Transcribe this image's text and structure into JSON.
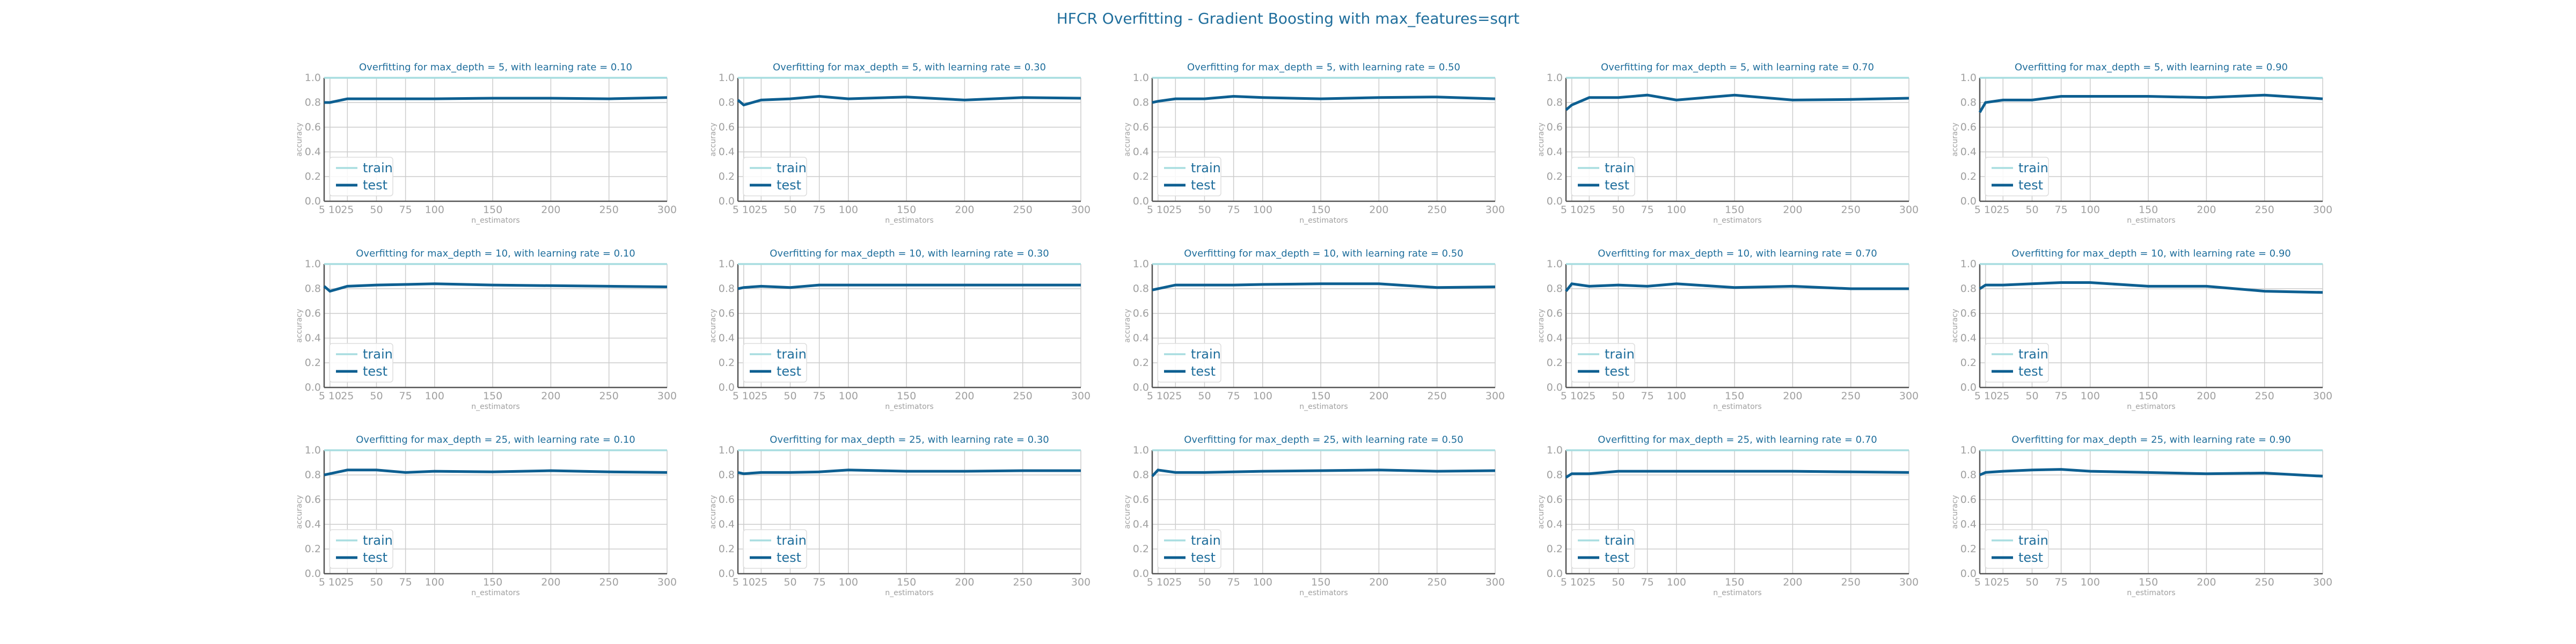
{
  "colors": {
    "title": "#1f6e9c",
    "train": "#a8dde0",
    "test": "#0d5f91",
    "tick": "#a0a0a0",
    "grid": "#cccccc",
    "spine": "#555555"
  },
  "chart_data": {
    "type": "line",
    "title": "HFCR Overfitting - Gradient Boosting with max_features=sqrt",
    "xlabel": "n_estimators",
    "ylabel": "accuracy",
    "xlim": [
      5,
      300
    ],
    "ylim": [
      0.0,
      1.0
    ],
    "x_ticks": [
      "5",
      "10",
      "25",
      "50",
      "75",
      "100",
      "150",
      "200",
      "250",
      "300"
    ],
    "y_ticks": [
      "0.0",
      "0.2",
      "0.4",
      "0.6",
      "0.8",
      "1.0"
    ],
    "grid": true,
    "legend": "lower-left",
    "x": [
      5,
      10,
      25,
      50,
      75,
      100,
      150,
      200,
      250,
      300
    ],
    "series_names": [
      "train",
      "test"
    ],
    "panels": [
      {
        "title": "Overfitting for max_depth = 5, with learning rate = 0.10",
        "train": [
          1,
          1,
          1,
          1,
          1,
          1,
          1,
          1,
          1,
          1
        ],
        "test": [
          0.8,
          0.8,
          0.83,
          0.83,
          0.83,
          0.83,
          0.835,
          0.835,
          0.83,
          0.84
        ]
      },
      {
        "title": "Overfitting for max_depth = 5, with learning rate = 0.30",
        "train": [
          1,
          1,
          1,
          1,
          1,
          1,
          1,
          1,
          1,
          1
        ],
        "test": [
          0.82,
          0.78,
          0.82,
          0.83,
          0.85,
          0.83,
          0.845,
          0.82,
          0.84,
          0.835
        ]
      },
      {
        "title": "Overfitting for max_depth = 5, with learning rate = 0.50",
        "train": [
          1,
          1,
          1,
          1,
          1,
          1,
          1,
          1,
          1,
          1
        ],
        "test": [
          0.8,
          0.81,
          0.83,
          0.83,
          0.85,
          0.84,
          0.83,
          0.84,
          0.845,
          0.83
        ]
      },
      {
        "title": "Overfitting for max_depth = 5, with learning rate = 0.70",
        "train": [
          1,
          1,
          1,
          1,
          1,
          1,
          1,
          1,
          1,
          1
        ],
        "test": [
          0.74,
          0.78,
          0.84,
          0.84,
          0.86,
          0.82,
          0.86,
          0.82,
          0.825,
          0.835
        ]
      },
      {
        "title": "Overfitting for max_depth = 5, with learning rate = 0.90",
        "train": [
          1,
          1,
          1,
          1,
          1,
          1,
          1,
          1,
          1,
          1
        ],
        "test": [
          0.72,
          0.8,
          0.82,
          0.82,
          0.85,
          0.85,
          0.85,
          0.84,
          0.86,
          0.83
        ]
      },
      {
        "title": "Overfitting for max_depth = 10, with learning rate = 0.10",
        "train": [
          1,
          1,
          1,
          1,
          1,
          1,
          1,
          1,
          1,
          1
        ],
        "test": [
          0.82,
          0.78,
          0.82,
          0.83,
          0.835,
          0.84,
          0.83,
          0.825,
          0.82,
          0.815
        ]
      },
      {
        "title": "Overfitting for max_depth = 10, with learning rate = 0.30",
        "train": [
          1,
          1,
          1,
          1,
          1,
          1,
          1,
          1,
          1,
          1
        ],
        "test": [
          0.8,
          0.81,
          0.82,
          0.81,
          0.83,
          0.83,
          0.83,
          0.83,
          0.83,
          0.83
        ]
      },
      {
        "title": "Overfitting for max_depth = 10, with learning rate = 0.50",
        "train": [
          1,
          1,
          1,
          1,
          1,
          1,
          1,
          1,
          1,
          1
        ],
        "test": [
          0.79,
          0.8,
          0.83,
          0.83,
          0.83,
          0.835,
          0.84,
          0.84,
          0.81,
          0.815
        ]
      },
      {
        "title": "Overfitting for max_depth = 10, with learning rate = 0.70",
        "train": [
          1,
          1,
          1,
          1,
          1,
          1,
          1,
          1,
          1,
          1
        ],
        "test": [
          0.78,
          0.84,
          0.82,
          0.83,
          0.82,
          0.84,
          0.81,
          0.82,
          0.8,
          0.8
        ]
      },
      {
        "title": "Overfitting for max_depth = 10, with learning rate = 0.90",
        "train": [
          1,
          1,
          1,
          1,
          1,
          1,
          1,
          1,
          1,
          1
        ],
        "test": [
          0.8,
          0.83,
          0.83,
          0.84,
          0.85,
          0.85,
          0.82,
          0.82,
          0.78,
          0.77
        ]
      },
      {
        "title": "Overfitting for max_depth = 25, with learning rate = 0.10",
        "train": [
          1,
          1,
          1,
          1,
          1,
          1,
          1,
          1,
          1,
          1
        ],
        "test": [
          0.8,
          0.81,
          0.84,
          0.84,
          0.82,
          0.83,
          0.825,
          0.835,
          0.825,
          0.82
        ]
      },
      {
        "title": "Overfitting for max_depth = 25, with learning rate = 0.30",
        "train": [
          1,
          1,
          1,
          1,
          1,
          1,
          1,
          1,
          1,
          1
        ],
        "test": [
          0.82,
          0.81,
          0.82,
          0.82,
          0.825,
          0.84,
          0.83,
          0.83,
          0.835,
          0.835
        ]
      },
      {
        "title": "Overfitting for max_depth = 25, with learning rate = 0.50",
        "train": [
          1,
          1,
          1,
          1,
          1,
          1,
          1,
          1,
          1,
          1
        ],
        "test": [
          0.79,
          0.84,
          0.82,
          0.82,
          0.825,
          0.83,
          0.835,
          0.84,
          0.83,
          0.835
        ]
      },
      {
        "title": "Overfitting for max_depth = 25, with learning rate = 0.70",
        "train": [
          1,
          1,
          1,
          1,
          1,
          1,
          1,
          1,
          1,
          1
        ],
        "test": [
          0.78,
          0.81,
          0.81,
          0.83,
          0.83,
          0.83,
          0.83,
          0.83,
          0.825,
          0.82
        ]
      },
      {
        "title": "Overfitting for max_depth = 25, with learning rate = 0.90",
        "train": [
          1,
          1,
          1,
          1,
          1,
          1,
          1,
          1,
          1,
          1
        ],
        "test": [
          0.8,
          0.82,
          0.83,
          0.84,
          0.845,
          0.83,
          0.82,
          0.81,
          0.815,
          0.79
        ]
      }
    ]
  }
}
